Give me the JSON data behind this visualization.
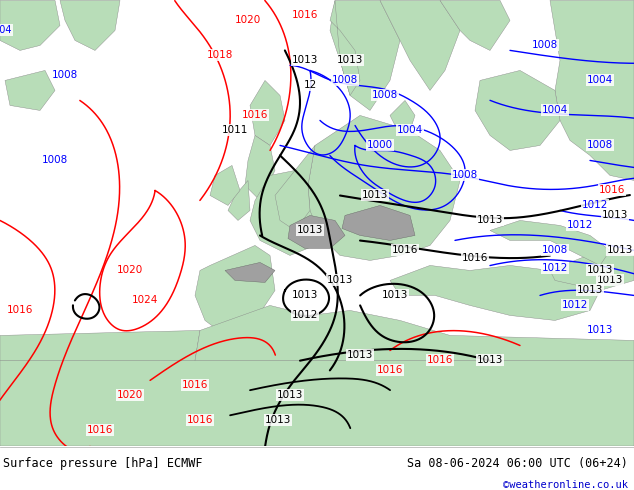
{
  "title_left": "Surface pressure [hPa] ECMWF",
  "title_right": "Sa 08-06-2024 06:00 UTC (06+24)",
  "credit": "©weatheronline.co.uk",
  "fig_width": 6.34,
  "fig_height": 4.9,
  "dpi": 100,
  "ocean_color": "#d8d8d8",
  "land_color": "#b8ddb8",
  "mountain_color": "#a0a0a0",
  "text_color": "#000000",
  "credit_color": "#0000cc",
  "bottom_bg": "#ffffff"
}
